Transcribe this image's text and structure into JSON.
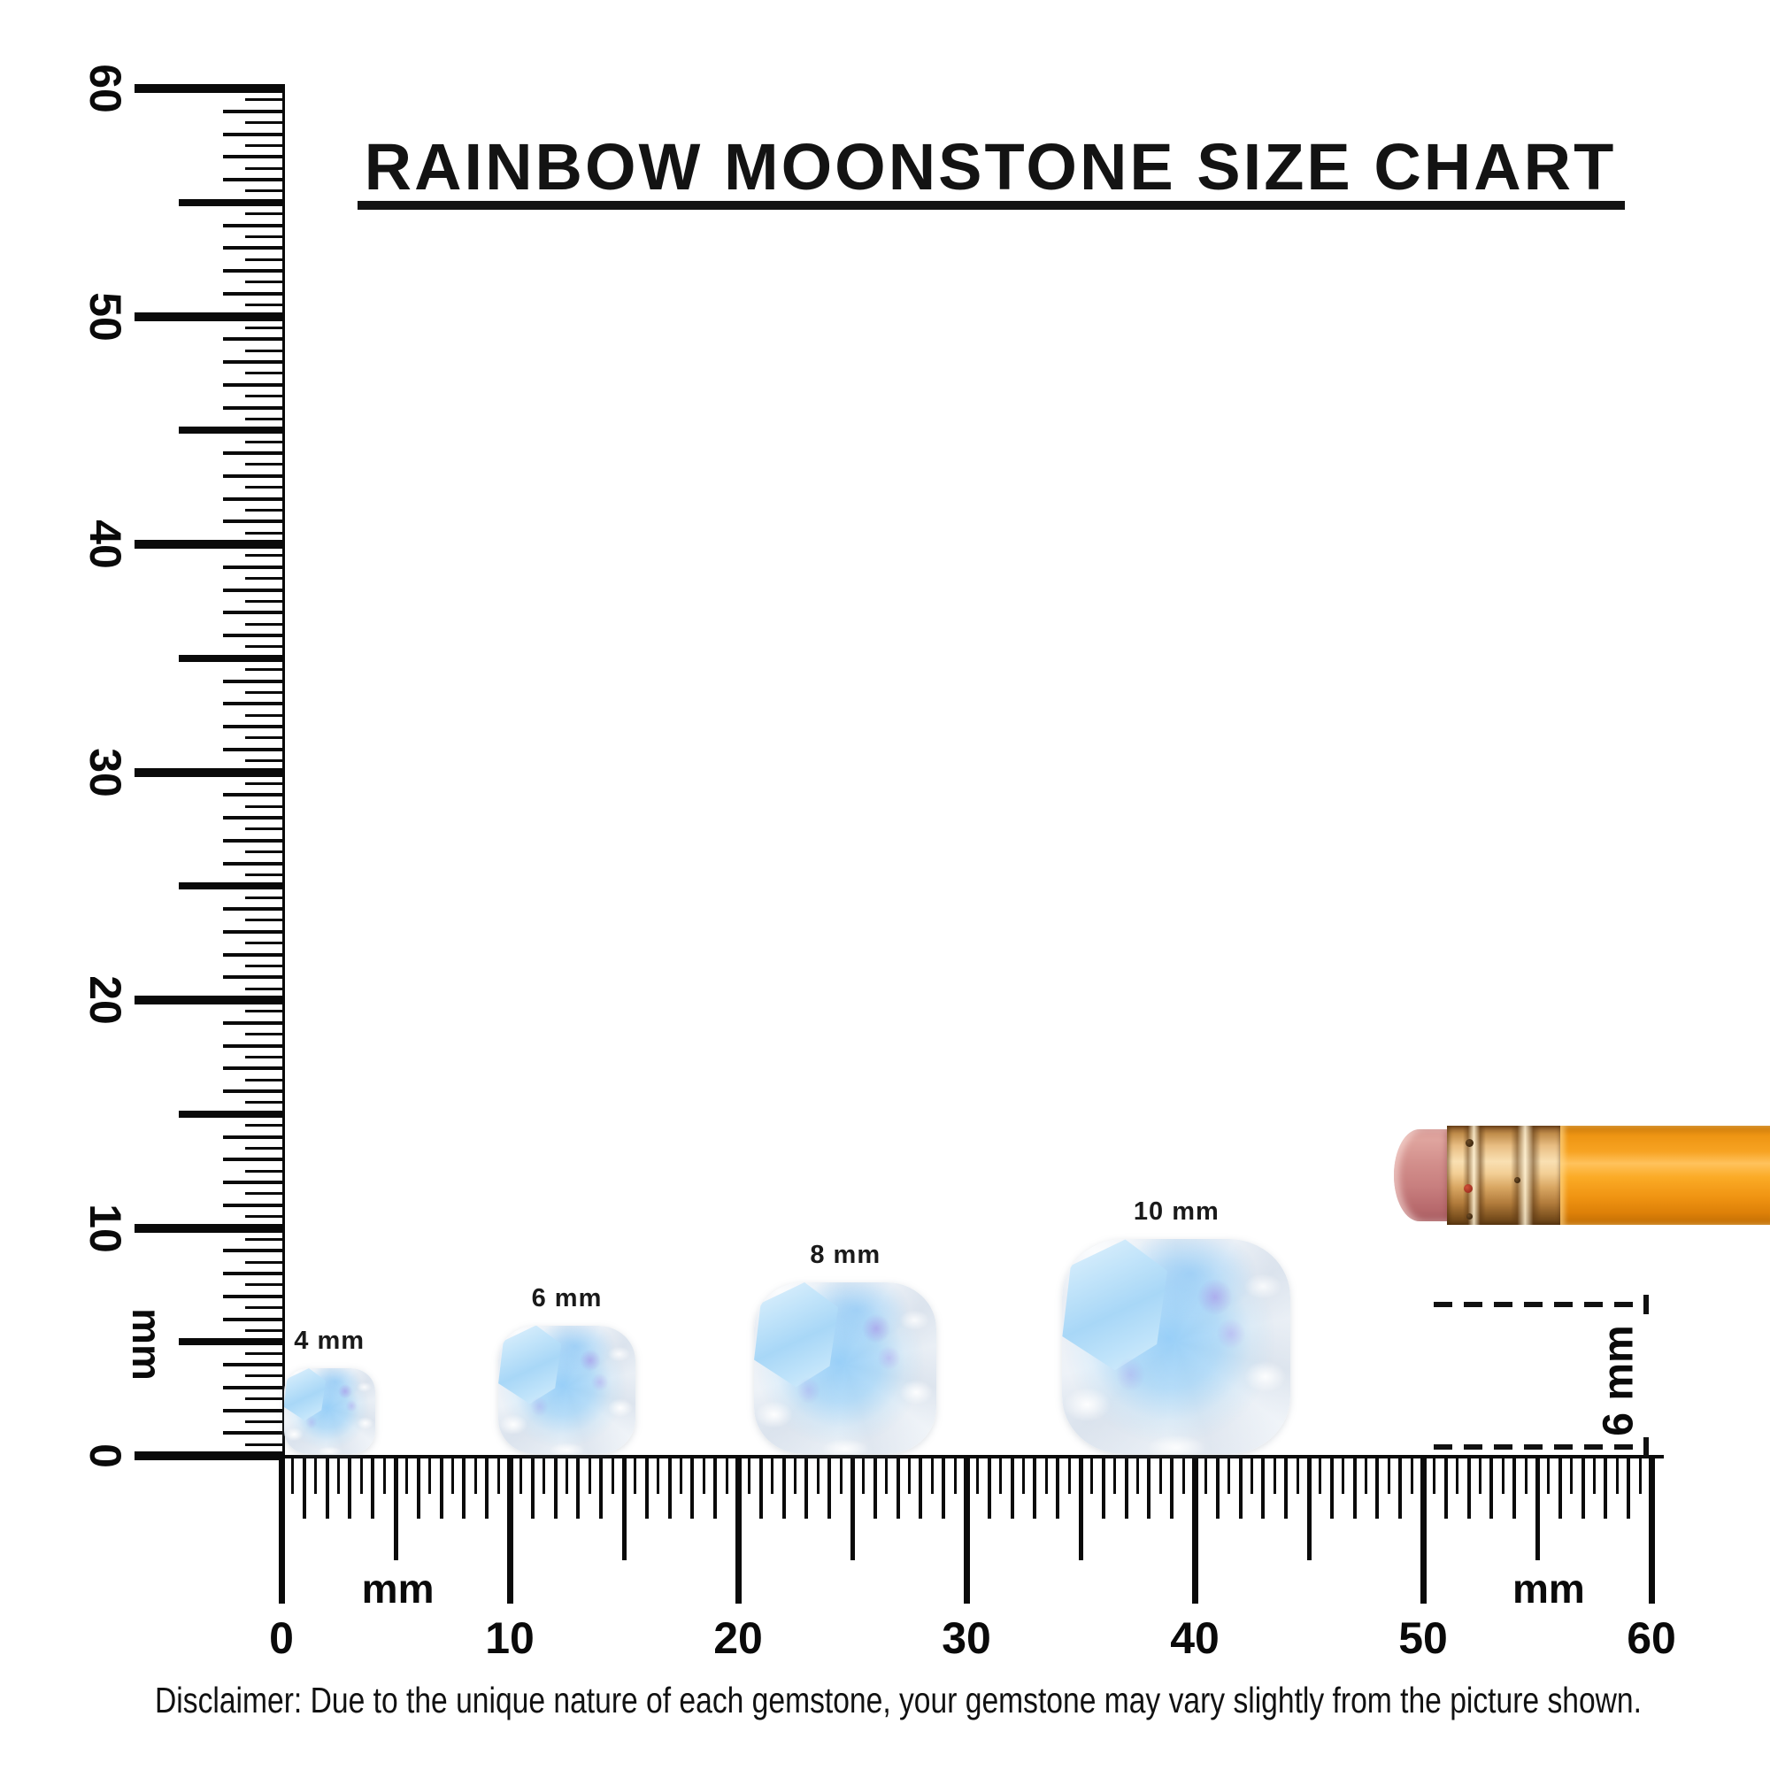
{
  "title": {
    "text": "RAINBOW MOONSTONE SIZE CHART"
  },
  "vertical_ruler": {
    "unit": "mm",
    "min_mm": 0,
    "max_mm": 60,
    "major_step_mm": 10,
    "minor_step_mm": 0.5,
    "labels": [
      "0",
      "10",
      "20",
      "30",
      "40",
      "50",
      "60"
    ],
    "unit_position_mm": 4.9
  },
  "horizontal_ruler": {
    "unit": "mm",
    "min_mm": 0,
    "max_mm": 60,
    "major_step_mm": 10,
    "minor_step_mm": 0.5,
    "labels": [
      "0",
      "10",
      "20",
      "30",
      "40",
      "50",
      "60"
    ],
    "unit_positions_mm": [
      5.1,
      55.5
    ]
  },
  "gems": [
    {
      "label": "4 mm",
      "size_mm": 4,
      "position_mm": 2.1
    },
    {
      "label": "6 mm",
      "size_mm": 6,
      "position_mm": 12.5
    },
    {
      "label": "8 mm",
      "size_mm": 8,
      "position_mm": 24.7
    },
    {
      "label": "10 mm",
      "size_mm": 10,
      "position_mm": 39.2
    }
  ],
  "comparison": {
    "eraser_label": "6 mm",
    "eraser_diameter_mm": 6,
    "eraser_color": "#ce6060",
    "pencil_body_color": "#f59c1c",
    "pencil_ferrule_color": "#e8bd82",
    "pencil_eraser_color": "#d28e8b"
  },
  "disclaimer": {
    "text": "Disclaimer: Due to the unique nature of each gemstone, your gemstone may vary slightly from the picture shown."
  },
  "colors": {
    "ink": "#0a0a0a",
    "gem_blue": "#a8d7f7",
    "gem_purple": "#b496ec",
    "gem_white": "#f3f6fa"
  }
}
